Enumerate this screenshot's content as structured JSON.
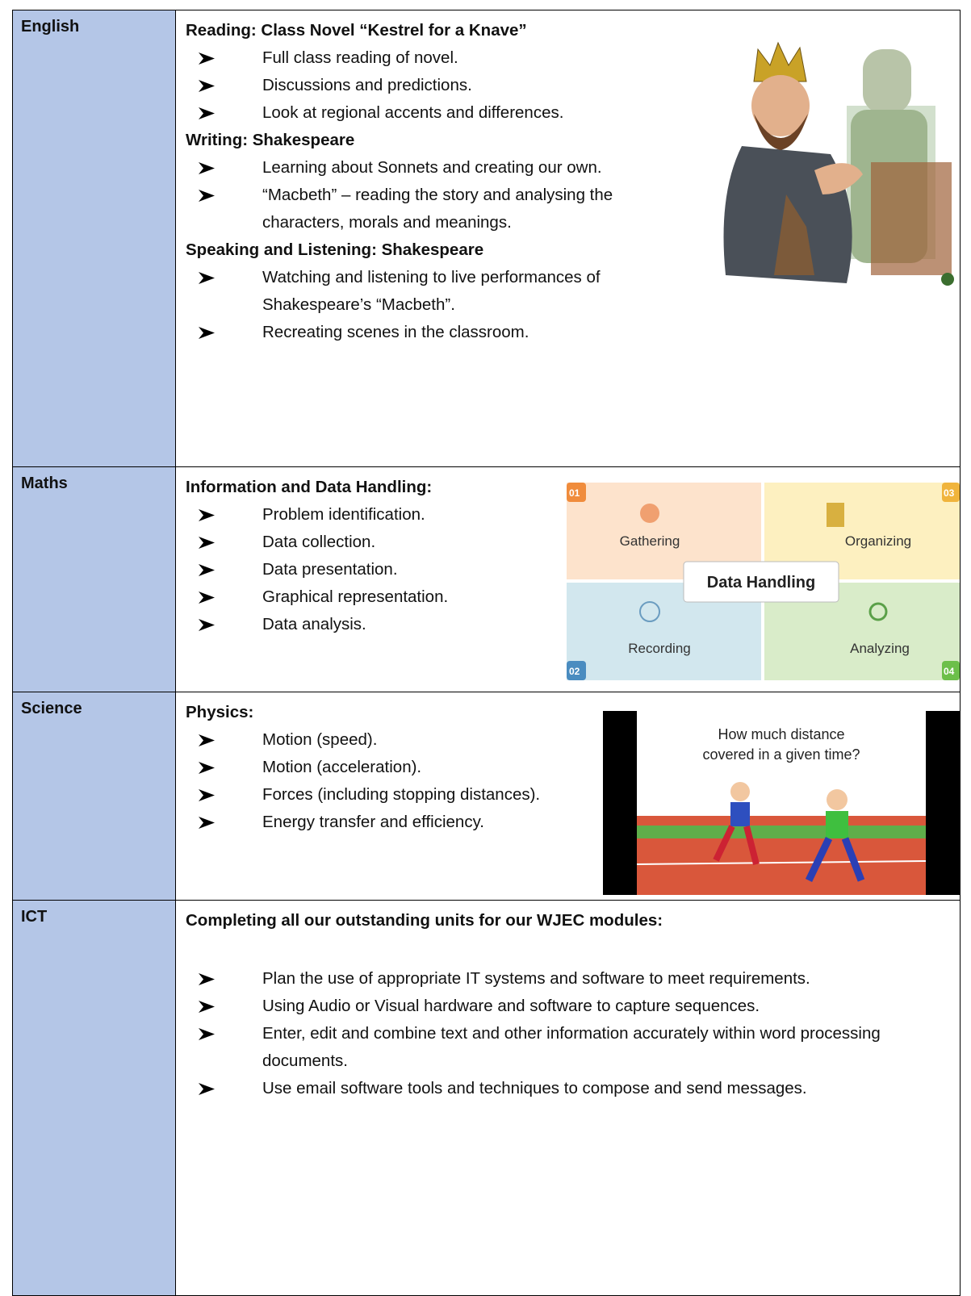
{
  "table": {
    "rows": [
      {
        "subject": "English",
        "sections": [
          {
            "heading": "Reading: Class Novel “Kestrel for a Knave”",
            "items": [
              "Full class reading of novel.",
              "Discussions and predictions.",
              "Look at regional accents and differences."
            ]
          },
          {
            "heading": "Writing: Shakespeare",
            "items": [
              "Learning about Sonnets and creating our own.",
              "“Macbeth” – reading the story and analysing the characters, morals and meanings."
            ]
          },
          {
            "heading": "Speaking and Listening: Shakespeare",
            "items": [
              "Watching and listening to live performances of Shakespeare’s “Macbeth”.",
              "Recreating scenes in the classroom."
            ]
          }
        ]
      },
      {
        "subject": "Maths",
        "sections": [
          {
            "heading": "Information and Data Handling:",
            "items": [
              "Problem identification.",
              "Data collection.",
              "Data presentation.",
              "Graphical representation.",
              "Data analysis."
            ]
          }
        ],
        "image": {
          "title": "Data Handling",
          "quadrants": [
            {
              "number": "01",
              "label": "Gathering"
            },
            {
              "number": "03",
              "label": "Organizing"
            },
            {
              "number": "02",
              "label": "Recording"
            },
            {
              "number": "04",
              "label": "Analyzing"
            }
          ]
        }
      },
      {
        "subject": "Science",
        "sections": [
          {
            "heading": "Physics:",
            "items": [
              "Motion (speed).",
              "Motion (acceleration).",
              "Forces (including stopping distances).",
              "Energy transfer and efficiency."
            ]
          }
        ],
        "image": {
          "caption_lines": [
            "How much distance",
            "covered in a given time?"
          ]
        }
      },
      {
        "subject": "ICT",
        "sections": [
          {
            "heading": "Completing all our outstanding units for our WJEC modules:",
            "items": [
              "Plan the use of appropriate IT systems and software to meet requirements.",
              "Using Audio or Visual hardware and software to capture sequences.",
              "Enter, edit and combine text and other information accurately within word processing documents.",
              "Use email software tools and techniques to compose and send messages."
            ]
          }
        ]
      }
    ]
  }
}
